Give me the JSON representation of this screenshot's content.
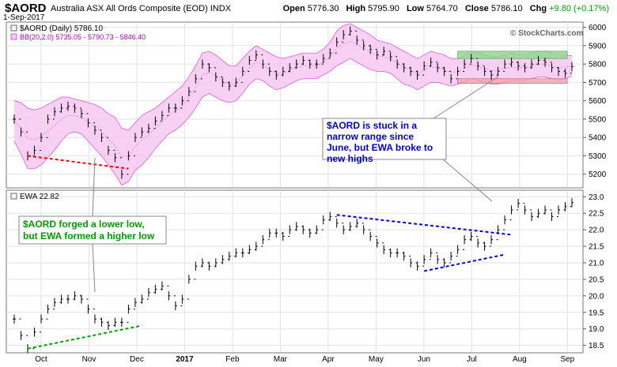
{
  "header": {
    "symbol": "$AORD",
    "name": "Australia ASX All Ords Composite (EOD)",
    "exchange": "INDX",
    "date": "1-Sep-2017",
    "open_label": "Open",
    "open": "5776.30",
    "high_label": "High",
    "high": "5795.90",
    "low_label": "Low",
    "low": "5764.70",
    "close_label": "Close",
    "close": "5786.10",
    "chg_label": "Chg",
    "chg": "+9.80 (+0.17%)",
    "brand": "© StockCharts.com"
  },
  "colors": {
    "bollinger_fill": "#f7c8f1",
    "bollinger_line": "#d95fd0",
    "resistance_zone": "#8ed68e",
    "support_zone": "#f1a3ac",
    "red_trend": "#ff0000",
    "green_trend": "#00a000",
    "blue_trend": "#0000dd",
    "annotation_blue": "#0000cc",
    "annotation_green": "#009900"
  },
  "chart_data": [
    {
      "type": "line",
      "panel": "top",
      "legend": "$AORD (Daily) 5786.10",
      "legend_bb": "BB(20,2.0) 5735.05 - 5790.73 - 5846.40",
      "x_ticks": [
        "Oct",
        "Nov",
        "Dec",
        "2017",
        "Feb",
        "Mar",
        "Apr",
        "May",
        "Jun",
        "Jul",
        "Aug",
        "Sep"
      ],
      "y_ticks": [
        5200,
        5300,
        5400,
        5500,
        5600,
        5700,
        5800,
        5900,
        6000
      ],
      "ylim": [
        5130,
        6020
      ],
      "x": [
        0,
        3,
        6,
        9,
        12,
        15,
        18,
        21,
        24,
        27,
        30,
        33,
        36,
        39,
        42,
        45,
        48,
        51,
        54,
        57,
        60,
        63,
        66,
        69,
        72,
        75,
        78,
        81,
        84,
        87,
        90,
        93,
        96,
        99,
        102,
        105,
        108,
        111,
        114,
        117,
        120,
        123,
        126,
        129,
        132,
        135,
        138,
        141,
        144,
        147,
        150,
        153,
        156,
        159,
        162,
        165,
        168,
        171,
        174,
        177,
        180,
        183,
        186,
        189,
        192,
        195,
        198,
        201,
        204,
        207,
        210,
        213,
        216,
        219,
        222,
        225,
        228,
        231,
        234,
        237,
        240,
        243,
        246,
        249
      ],
      "values": [
        5500,
        5430,
        5300,
        5330,
        5400,
        5500,
        5540,
        5560,
        5570,
        5560,
        5530,
        5480,
        5440,
        5400,
        5330,
        5290,
        5200,
        5300,
        5400,
        5430,
        5450,
        5490,
        5520,
        5560,
        5560,
        5600,
        5650,
        5720,
        5800,
        5780,
        5730,
        5700,
        5680,
        5700,
        5760,
        5820,
        5850,
        5800,
        5760,
        5740,
        5760,
        5780,
        5800,
        5820,
        5800,
        5800,
        5830,
        5860,
        5920,
        5960,
        5980,
        5930,
        5900,
        5880,
        5850,
        5870,
        5840,
        5800,
        5780,
        5760,
        5740,
        5790,
        5810,
        5780,
        5760,
        5720,
        5760,
        5800,
        5830,
        5790,
        5760,
        5740,
        5760,
        5800,
        5810,
        5790,
        5780,
        5800,
        5820,
        5810,
        5780,
        5760,
        5750,
        5786
      ],
      "bb_upper": [
        5600,
        5590,
        5560,
        5550,
        5560,
        5580,
        5600,
        5620,
        5620,
        5610,
        5600,
        5590,
        5580,
        5560,
        5530,
        5510,
        5450,
        5440,
        5480,
        5520,
        5540,
        5560,
        5590,
        5620,
        5650,
        5680,
        5730,
        5790,
        5860,
        5870,
        5850,
        5820,
        5790,
        5790,
        5830,
        5870,
        5900,
        5880,
        5860,
        5840,
        5830,
        5840,
        5850,
        5860,
        5860,
        5860,
        5880,
        5920,
        5980,
        6010,
        6020,
        6000,
        5980,
        5960,
        5930,
        5920,
        5910,
        5890,
        5870,
        5850,
        5830,
        5850,
        5870,
        5860,
        5850,
        5830,
        5830,
        5850,
        5870,
        5860,
        5850,
        5840,
        5840,
        5850,
        5860,
        5850,
        5850,
        5860,
        5870,
        5870,
        5860,
        5850,
        5848,
        5846
      ],
      "bb_lower": [
        5380,
        5310,
        5230,
        5230,
        5250,
        5290,
        5330,
        5380,
        5420,
        5430,
        5420,
        5380,
        5340,
        5300,
        5250,
        5200,
        5140,
        5160,
        5220,
        5250,
        5290,
        5340,
        5380,
        5420,
        5440,
        5470,
        5510,
        5560,
        5620,
        5640,
        5620,
        5600,
        5590,
        5600,
        5640,
        5690,
        5720,
        5710,
        5680,
        5660,
        5670,
        5690,
        5710,
        5720,
        5720,
        5720,
        5740,
        5760,
        5790,
        5810,
        5830,
        5810,
        5790,
        5770,
        5760,
        5760,
        5750,
        5720,
        5690,
        5680,
        5660,
        5680,
        5700,
        5700,
        5690,
        5680,
        5690,
        5700,
        5720,
        5710,
        5700,
        5690,
        5690,
        5700,
        5710,
        5710,
        5710,
        5720,
        5730,
        5730,
        5720,
        5710,
        5720,
        5735
      ],
      "resistance_zone": [
        5830,
        5870
      ],
      "support_zone": [
        5695,
        5720
      ],
      "annotation": "$AORD is stuck in a narrow range since June, but EWA broke to new highs"
    },
    {
      "type": "line",
      "panel": "bottom",
      "legend": "EWA 22.82",
      "x_ticks": [
        "Oct",
        "Nov",
        "Dec",
        "2017",
        "Feb",
        "Mar",
        "Apr",
        "May",
        "Jun",
        "Jul",
        "Aug",
        "Sep"
      ],
      "y_ticks": [
        18.5,
        19.0,
        19.5,
        20.0,
        20.5,
        21.0,
        21.5,
        22.0,
        22.5,
        23.0
      ],
      "ylim": [
        18.3,
        23.15
      ],
      "x": [
        0,
        3,
        6,
        9,
        12,
        15,
        18,
        21,
        24,
        27,
        30,
        33,
        36,
        39,
        42,
        45,
        48,
        51,
        54,
        57,
        60,
        63,
        66,
        69,
        72,
        75,
        78,
        81,
        84,
        87,
        90,
        93,
        96,
        99,
        102,
        105,
        108,
        111,
        114,
        117,
        120,
        123,
        126,
        129,
        132,
        135,
        138,
        141,
        144,
        147,
        150,
        153,
        156,
        159,
        162,
        165,
        168,
        171,
        174,
        177,
        180,
        183,
        186,
        189,
        192,
        195,
        198,
        201,
        204,
        207,
        210,
        213,
        216,
        219,
        222,
        225,
        228,
        231,
        234,
        237,
        240,
        243,
        246,
        249
      ],
      "values": [
        19.3,
        18.8,
        18.4,
        18.9,
        19.3,
        19.6,
        19.8,
        19.9,
        19.9,
        20.0,
        19.9,
        19.6,
        19.3,
        19.2,
        19.1,
        19.2,
        19.2,
        19.6,
        19.8,
        19.9,
        20.1,
        20.2,
        20.3,
        20.0,
        19.7,
        19.9,
        20.5,
        20.9,
        21.0,
        20.9,
        21.0,
        21.1,
        21.2,
        21.3,
        21.3,
        21.4,
        21.5,
        21.7,
        21.9,
        21.9,
        21.8,
        22.0,
        22.1,
        22.0,
        21.9,
        22.0,
        22.3,
        22.4,
        22.2,
        22.0,
        22.1,
        22.2,
        22.0,
        21.8,
        21.6,
        21.4,
        21.3,
        21.3,
        21.2,
        21.0,
        20.9,
        21.1,
        21.3,
        21.1,
        21.0,
        21.2,
        21.4,
        21.7,
        21.8,
        21.6,
        21.5,
        21.7,
        22.0,
        22.3,
        22.6,
        22.8,
        22.6,
        22.4,
        22.5,
        22.6,
        22.4,
        22.6,
        22.7,
        22.82
      ],
      "annotation": "$AORD forged a lower low, but EWA formed a higher low"
    }
  ]
}
